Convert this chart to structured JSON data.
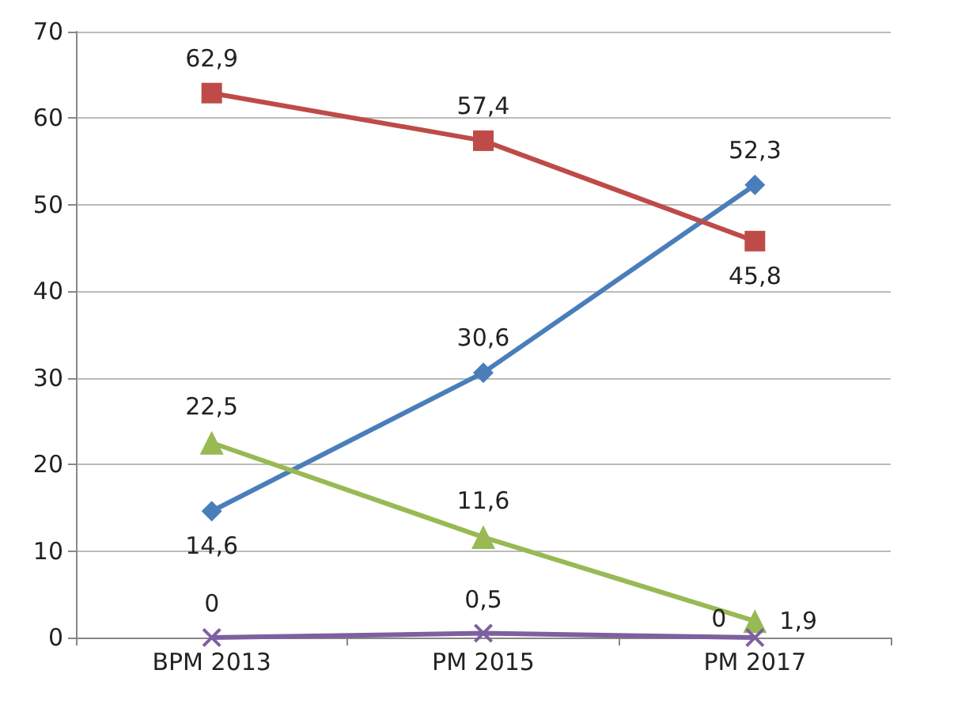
{
  "chart_data": {
    "type": "line",
    "categories": [
      "BPM 2013",
      "PM 2015",
      "PM 2017"
    ],
    "series": [
      {
        "color": "#4a7ebb",
        "marker": "diamond",
        "values": [
          14.6,
          30.6,
          52.3
        ],
        "value_labels": [
          "14,6",
          "30,6",
          "52,3"
        ]
      },
      {
        "color": "#be4b48",
        "marker": "square",
        "values": [
          62.9,
          57.4,
          45.8
        ],
        "value_labels": [
          "62,9",
          "57,4",
          "45,8"
        ]
      },
      {
        "color": "#98b954",
        "marker": "triangle",
        "values": [
          22.5,
          11.6,
          1.9
        ],
        "value_labels": [
          "22,5",
          "11,6",
          "1,9"
        ]
      },
      {
        "color": "#7d60a0",
        "marker": "cross",
        "values": [
          0,
          0.5,
          0
        ],
        "value_labels": [
          "0",
          "0,5",
          "0"
        ]
      }
    ],
    "ylim": [
      0,
      70
    ],
    "yticks": [
      0,
      10,
      20,
      30,
      40,
      50,
      60,
      70
    ],
    "grid": "y",
    "line_style": "solid"
  }
}
